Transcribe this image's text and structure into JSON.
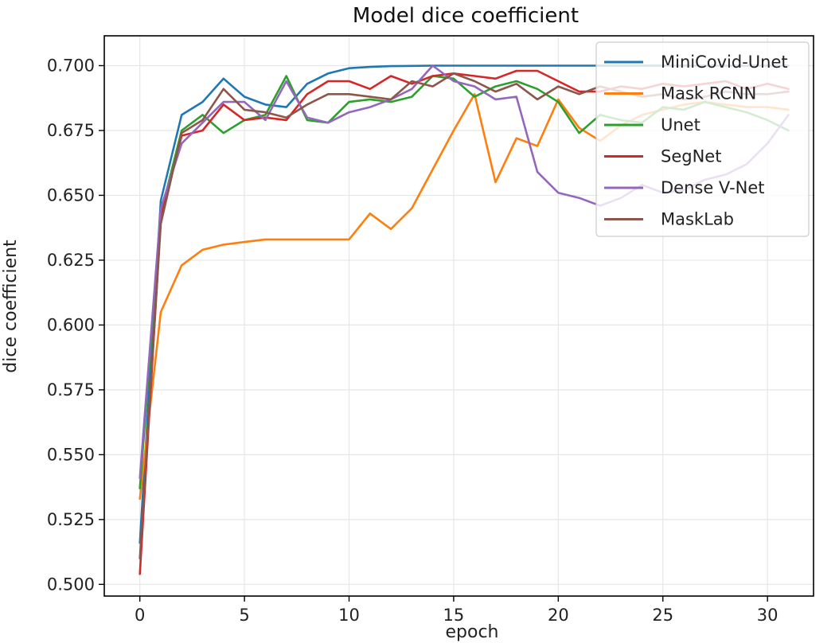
{
  "chart_data": {
    "type": "line",
    "title": "Model dice coefficient",
    "xlabel": "epoch",
    "ylabel": "dice coefficient",
    "xlim": [
      -1.7,
      32.2
    ],
    "ylim": [
      0.4955,
      0.7115
    ],
    "xticks": [
      0,
      5,
      10,
      15,
      20,
      25,
      30
    ],
    "yticks": [
      0.5,
      0.525,
      0.55,
      0.575,
      0.6,
      0.625,
      0.65,
      0.675,
      0.7
    ],
    "ytick_labels": [
      "0.500",
      "0.525",
      "0.550",
      "0.575",
      "0.600",
      "0.625",
      "0.650",
      "0.675",
      "0.700"
    ],
    "grid": true,
    "legend_position": "top-right",
    "x": [
      0,
      1,
      2,
      3,
      4,
      5,
      6,
      7,
      8,
      9,
      10,
      11,
      12,
      13,
      14,
      15,
      16,
      17,
      18,
      19,
      20,
      21,
      22,
      23,
      24,
      25,
      26,
      27,
      28,
      29,
      30,
      31
    ],
    "series": [
      {
        "name": "MiniCovid-Unet",
        "color": "#1f77b4",
        "values": [
          0.516,
          0.648,
          0.681,
          0.686,
          0.695,
          0.688,
          0.685,
          0.684,
          0.693,
          0.697,
          0.699,
          0.6995,
          0.6998,
          0.6999,
          0.7,
          0.7,
          0.7,
          0.7,
          0.7,
          0.7,
          0.7,
          0.7,
          0.7,
          0.7,
          0.7,
          0.7,
          0.7,
          0.7,
          0.7,
          0.7,
          0.7,
          0.7
        ]
      },
      {
        "name": "Mask RCNN",
        "color": "#ff7f0e",
        "values": [
          0.533,
          0.605,
          0.623,
          0.629,
          0.631,
          0.632,
          0.633,
          0.633,
          0.633,
          0.633,
          0.633,
          0.643,
          0.637,
          0.645,
          0.66,
          0.675,
          0.689,
          0.655,
          0.672,
          0.669,
          0.687,
          0.676,
          0.671,
          0.677,
          0.681,
          0.683,
          0.685,
          0.686,
          0.685,
          0.684,
          0.684,
          0.683
        ]
      },
      {
        "name": "Unet",
        "color": "#2ca02c",
        "values": [
          0.537,
          0.643,
          0.675,
          0.681,
          0.674,
          0.679,
          0.681,
          0.696,
          0.679,
          0.678,
          0.686,
          0.687,
          0.686,
          0.688,
          0.696,
          0.695,
          0.688,
          0.692,
          0.694,
          0.691,
          0.686,
          0.674,
          0.681,
          0.679,
          0.678,
          0.684,
          0.683,
          0.686,
          0.684,
          0.682,
          0.679,
          0.675
        ]
      },
      {
        "name": "SegNet",
        "color": "#d62728",
        "values": [
          0.504,
          0.641,
          0.673,
          0.675,
          0.685,
          0.679,
          0.68,
          0.679,
          0.689,
          0.694,
          0.694,
          0.691,
          0.696,
          0.693,
          0.696,
          0.697,
          0.696,
          0.695,
          0.698,
          0.698,
          0.694,
          0.69,
          0.69,
          0.692,
          0.691,
          0.693,
          0.692,
          0.693,
          0.694,
          0.691,
          0.693,
          0.691
        ]
      },
      {
        "name": "Dense V-Net",
        "color": "#9467bd",
        "values": [
          0.541,
          0.645,
          0.67,
          0.678,
          0.686,
          0.686,
          0.679,
          0.694,
          0.68,
          0.678,
          0.682,
          0.684,
          0.687,
          0.691,
          0.7,
          0.694,
          0.692,
          0.687,
          0.688,
          0.659,
          0.651,
          0.649,
          0.646,
          0.649,
          0.654,
          0.651,
          0.652,
          0.656,
          0.658,
          0.662,
          0.67,
          0.681
        ]
      },
      {
        "name": "MaskLab",
        "color": "#8c564b",
        "values": [
          0.51,
          0.639,
          0.674,
          0.679,
          0.691,
          0.683,
          0.682,
          0.68,
          0.685,
          0.689,
          0.689,
          0.688,
          0.687,
          0.694,
          0.692,
          0.697,
          0.694,
          0.69,
          0.693,
          0.687,
          0.692,
          0.689,
          0.692,
          0.69,
          0.688,
          0.689,
          0.687,
          0.688,
          0.69,
          0.689,
          0.689,
          0.69
        ]
      }
    ]
  }
}
